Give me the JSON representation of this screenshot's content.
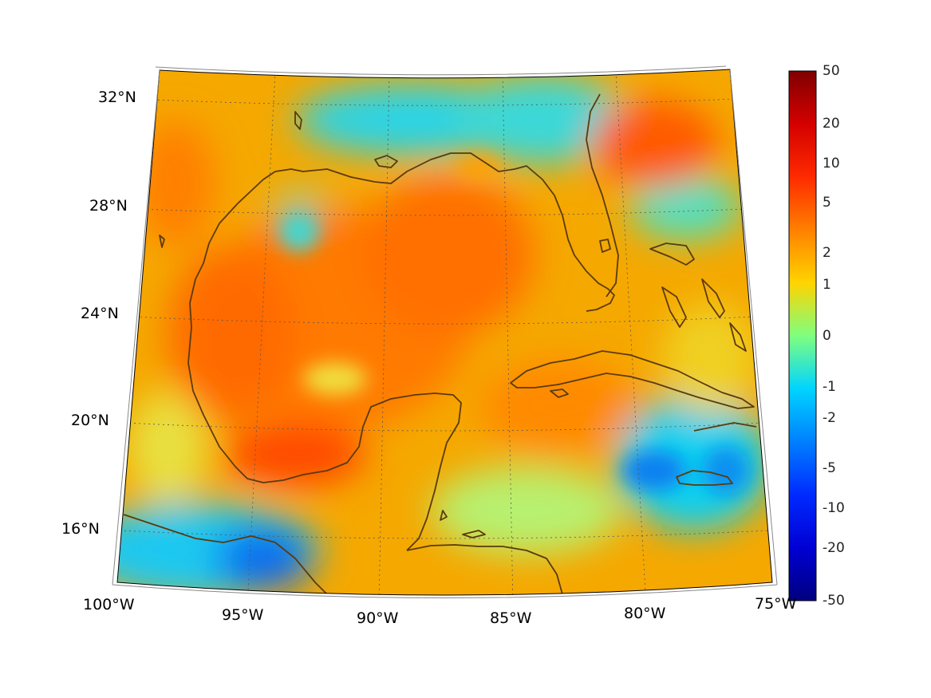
{
  "map": {
    "projection": "conic",
    "region": "Gulf of Mexico and Caribbean",
    "lon_range": [
      -100,
      -75
    ],
    "lat_range": [
      14,
      33
    ],
    "gridlines": true,
    "coastline_color": "#5b3a0e",
    "lon_labels": [
      "100°W",
      "95°W",
      "90°W",
      "85°W",
      "80°W",
      "75°W"
    ],
    "lat_labels": [
      "32°N",
      "28°N",
      "24°N",
      "20°N",
      "16°N"
    ]
  },
  "colorbar": {
    "colormap": "jet",
    "scale": "symmetric-log",
    "labels": [
      "50",
      "20",
      "10",
      "5",
      "2",
      "1",
      "0",
      "-1",
      "-2",
      "-5",
      "-10",
      "-20",
      "-50"
    ],
    "colors": [
      "#7f0000",
      "#ff0000",
      "#ff7f00",
      "#ffff00",
      "#7fff7f",
      "#00ffff",
      "#007fff",
      "#0000ff",
      "#00008f"
    ]
  }
}
